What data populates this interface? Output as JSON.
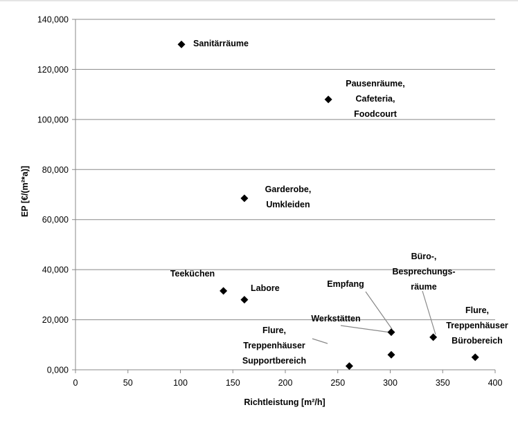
{
  "chart_data": {
    "type": "scatter",
    "title": "",
    "xlabel": "Richtleistung [m²/h]",
    "ylabel": "EP [€/(m²*a)]",
    "xlim": [
      0,
      400
    ],
    "ylim": [
      0,
      140000
    ],
    "x_ticks": [
      "0",
      "50",
      "100",
      "150",
      "200",
      "250",
      "300",
      "350",
      "400"
    ],
    "y_ticks": [
      "0,000",
      "20,000",
      "40,000",
      "60,000",
      "80,000",
      "100,000",
      "120,000",
      "140,000"
    ],
    "grid": "horizontal",
    "marker": "diamond",
    "marker_color": "#000000",
    "points": [
      {
        "x": 101,
        "y": 130000,
        "label": [
          "Sanitärräume"
        ]
      },
      {
        "x": 241,
        "y": 108000,
        "label": [
          "Pausenräume,",
          "Cafeteria,",
          "Foodcourt"
        ]
      },
      {
        "x": 161,
        "y": 68500,
        "label": [
          "Garderobe,",
          "Umkleiden"
        ]
      },
      {
        "x": 141,
        "y": 31500,
        "label": [
          "Teeküchen"
        ]
      },
      {
        "x": 161,
        "y": 28000,
        "label": [
          "Labore"
        ]
      },
      {
        "x": 301,
        "y": 15000,
        "label": [
          "Empfang"
        ]
      },
      {
        "x": 301,
        "y": 6000,
        "label": [
          "Werkstätten"
        ]
      },
      {
        "x": 261,
        "y": 1500,
        "label": [
          "Flure,",
          "Treppenhäuser",
          "Supportbereich"
        ]
      },
      {
        "x": 341,
        "y": 13000,
        "label": [
          "Büro-,",
          "Besprechungs-",
          "räume"
        ]
      },
      {
        "x": 381,
        "y": 5000,
        "label": [
          "Flure,",
          "Treppenhäuser",
          "Bürobereich"
        ]
      }
    ]
  }
}
